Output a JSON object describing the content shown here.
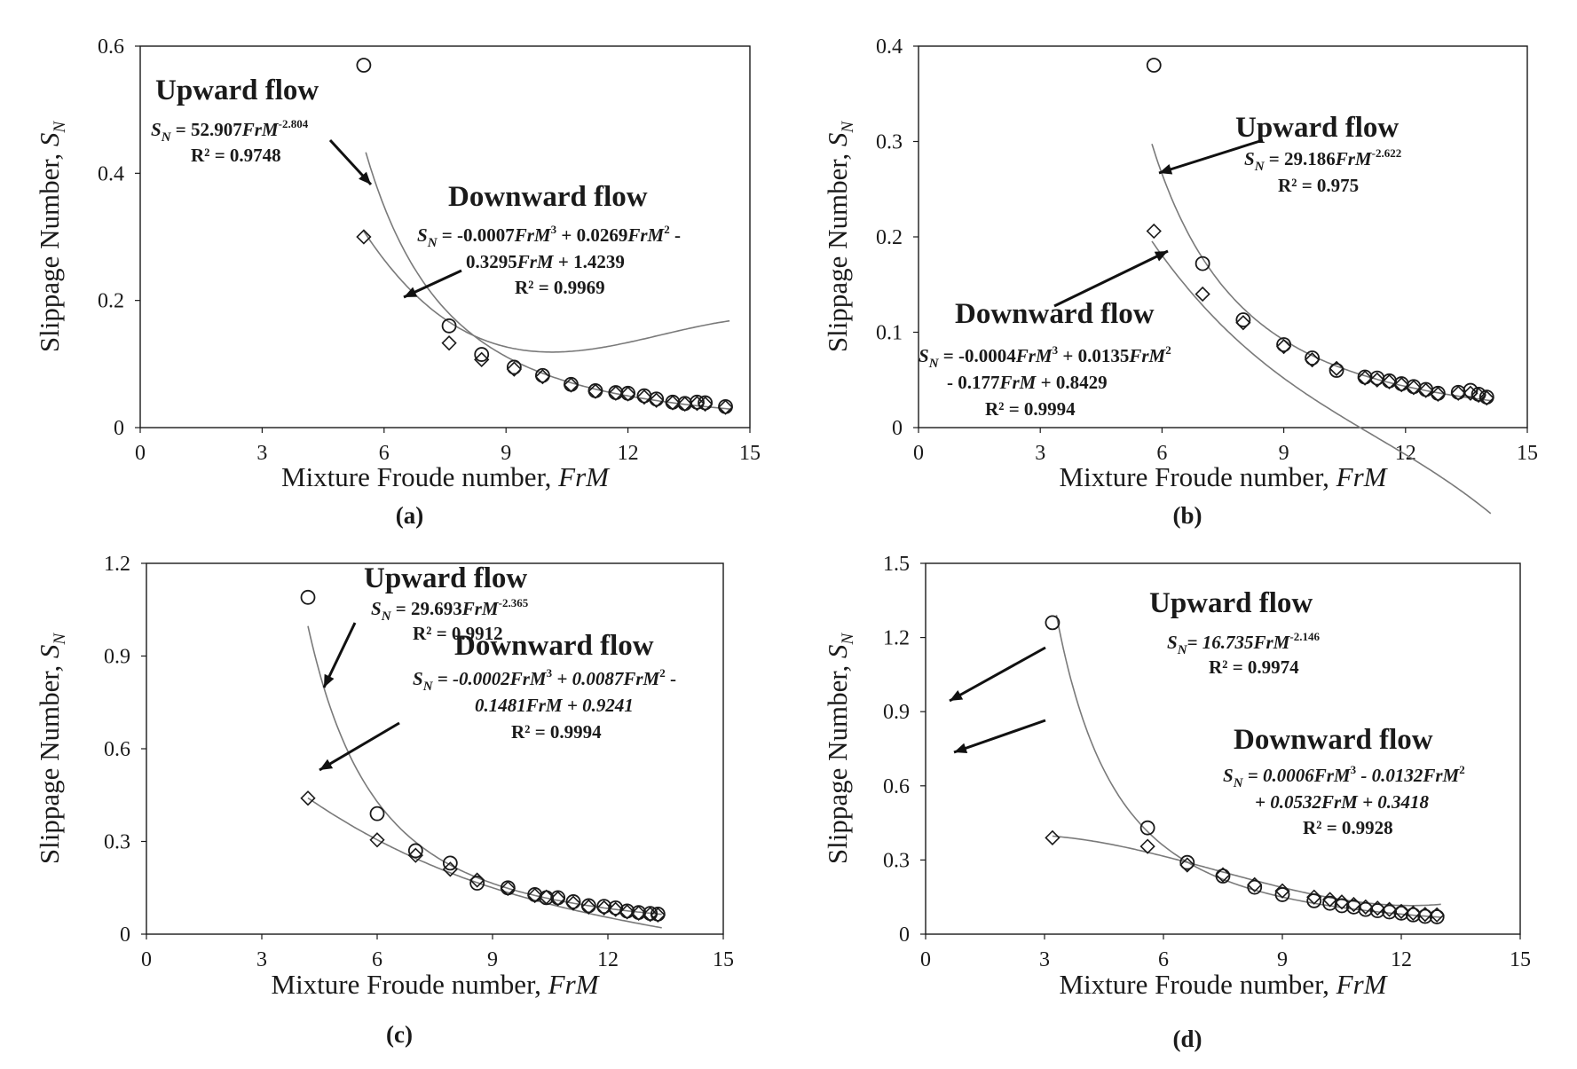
{
  "figure": {
    "colors": {
      "axis": "#1a1a1a",
      "curve": "#7a7a7a",
      "marker": "#1a1a1a",
      "background": "#ffffff"
    }
  },
  "chart_data": [
    {
      "id": "a",
      "type": "scatter",
      "panel_label": "(a)",
      "xlabel": "Mixture Froude number, ",
      "xlabel_italic": "FrM",
      "ylabel": "Slippage Number, ",
      "ylabel_italic": "S",
      "ylabel_sub": "N",
      "xlim": [
        0,
        15
      ],
      "ylim": [
        0,
        0.6
      ],
      "xticks": [
        0,
        3,
        6,
        9,
        12,
        15
      ],
      "yticks": [
        0,
        0.2,
        0.4,
        0.6
      ],
      "xtick_labels": [
        "0",
        "3",
        "6",
        "9",
        "12",
        "15"
      ],
      "ytick_labels": [
        "0",
        "0.2",
        "0.4",
        "0.6"
      ],
      "series": [
        {
          "name": "Upward flow",
          "marker": "circle",
          "x": [
            5.5,
            7.6,
            8.4,
            9.2,
            9.9,
            10.6,
            11.2,
            11.7,
            12.0,
            12.4,
            12.7,
            13.1,
            13.4,
            13.7,
            13.9,
            14.4
          ],
          "y": [
            0.57,
            0.16,
            0.115,
            0.095,
            0.082,
            0.068,
            0.058,
            0.055,
            0.054,
            0.05,
            0.045,
            0.04,
            0.038,
            0.04,
            0.039,
            0.033
          ],
          "fit": {
            "kind": "power",
            "a": 52.907,
            "b": -2.804,
            "range": [
              5.55,
              14.5
            ]
          }
        },
        {
          "name": "Downward flow",
          "marker": "diamond",
          "x": [
            5.5,
            7.6,
            8.4,
            9.2,
            9.9,
            10.6,
            11.2,
            11.7,
            12.0,
            12.4,
            12.7,
            13.1,
            13.4,
            13.7,
            13.9,
            14.4
          ],
          "y": [
            0.3,
            0.133,
            0.107,
            0.092,
            0.08,
            0.067,
            0.057,
            0.054,
            0.053,
            0.048,
            0.043,
            0.039,
            0.037,
            0.038,
            0.037,
            0.032
          ],
          "fit": {
            "kind": "poly3",
            "c3": -0.0007,
            "c2": 0.0269,
            "c1": -0.3295,
            "c0": 1.4239,
            "range": [
              5.5,
              14.5
            ]
          }
        }
      ],
      "annotations": {
        "up": {
          "title": "Upward flow",
          "eq": [
            [
              "S",
              "i"
            ],
            [
              "N",
              "sub"
            ],
            [
              " = 52.907",
              ""
            ],
            [
              "FrM",
              "i"
            ],
            [
              "-2.804",
              "sup"
            ]
          ],
          "r2": "R² = 0.9748"
        },
        "down": {
          "title": "Downward flow",
          "eq": [
            [
              "S",
              "i"
            ],
            [
              "N",
              "sub"
            ],
            [
              " = -0.0007",
              ""
            ],
            [
              "FrM",
              "i"
            ],
            [
              "3",
              "sup"
            ],
            [
              " + 0.0269",
              ""
            ],
            [
              "FrM",
              "i"
            ],
            [
              "2",
              "sup"
            ],
            [
              " -",
              ""
            ]
          ],
          "eq2": [
            [
              "0.3295",
              ""
            ],
            [
              "FrM",
              "i"
            ],
            [
              " + 1.4239",
              ""
            ]
          ],
          "r2": "R² = 0.9969"
        }
      }
    },
    {
      "id": "b",
      "type": "scatter",
      "panel_label": "(b)",
      "xlabel": "Mixture Froude number, ",
      "xlabel_italic": "FrM",
      "ylabel": "Slippage Number, ",
      "ylabel_italic": "S",
      "ylabel_sub": "N",
      "xlim": [
        0,
        15
      ],
      "ylim": [
        0,
        0.4
      ],
      "xticks": [
        0,
        3,
        6,
        9,
        12,
        15
      ],
      "yticks": [
        0,
        0.1,
        0.2,
        0.3,
        0.4
      ],
      "xtick_labels": [
        "0",
        "3",
        "6",
        "9",
        "12",
        "15"
      ],
      "ytick_labels": [
        "0",
        "0.1",
        "0.2",
        "0.3",
        "0.4"
      ],
      "series": [
        {
          "name": "Upward flow",
          "marker": "circle",
          "x": [
            5.8,
            7.0,
            8.0,
            9.0,
            9.7,
            10.3,
            11.0,
            11.3,
            11.6,
            11.9,
            12.2,
            12.5,
            12.8,
            13.3,
            13.6,
            13.8,
            14.0
          ],
          "y": [
            0.38,
            0.172,
            0.113,
            0.087,
            0.073,
            0.06,
            0.053,
            0.052,
            0.049,
            0.046,
            0.043,
            0.04,
            0.036,
            0.037,
            0.039,
            0.035,
            0.032
          ],
          "fit": {
            "kind": "power",
            "a": 29.186,
            "b": -2.622,
            "range": [
              5.75,
              14.1
            ]
          }
        },
        {
          "name": "Downward flow",
          "marker": "diamond",
          "x": [
            5.8,
            7.0,
            8.0,
            9.0,
            9.7,
            10.3,
            11.0,
            11.3,
            11.6,
            11.9,
            12.2,
            12.5,
            12.8,
            13.3,
            13.6,
            13.8,
            14.0
          ],
          "y": [
            0.206,
            0.14,
            0.11,
            0.085,
            0.071,
            0.062,
            0.052,
            0.05,
            0.048,
            0.045,
            0.042,
            0.039,
            0.035,
            0.036,
            0.036,
            0.034,
            0.031
          ],
          "fit": {
            "kind": "poly3",
            "c3": -0.0004,
            "c2": 0.0135,
            "c1": -0.177,
            "c0": 0.8429,
            "range": [
              5.75,
              14.1
            ]
          }
        }
      ],
      "annotations": {
        "up": {
          "title": "Upward flow",
          "eq": [
            [
              "S",
              "i"
            ],
            [
              "N",
              "sub"
            ],
            [
              " = 29.186",
              ""
            ],
            [
              "FrM",
              "i"
            ],
            [
              "-2.622",
              "sup"
            ]
          ],
          "r2": "R² = 0.975"
        },
        "down": {
          "title": "Downward flow",
          "eq": [
            [
              "S",
              "i"
            ],
            [
              "N",
              "sub"
            ],
            [
              " = -0.0004",
              ""
            ],
            [
              "FrM",
              "i"
            ],
            [
              "3",
              "sup"
            ],
            [
              " + 0.0135",
              ""
            ],
            [
              "FrM",
              "i"
            ],
            [
              "2",
              "sup"
            ]
          ],
          "eq2": [
            [
              "- 0.177",
              ""
            ],
            [
              "FrM",
              "i"
            ],
            [
              " + 0.8429",
              ""
            ]
          ],
          "r2": "R² = 0.9994"
        }
      }
    },
    {
      "id": "c",
      "type": "scatter",
      "panel_label": "(c)",
      "xlabel": "Mixture Froude number, ",
      "xlabel_italic": "FrM",
      "ylabel": "Slippage Number, ",
      "ylabel_italic": "S",
      "ylabel_sub": "N",
      "xlim": [
        0,
        15
      ],
      "ylim": [
        0,
        1.2
      ],
      "xticks": [
        0,
        3,
        6,
        9,
        12,
        15
      ],
      "yticks": [
        0,
        0.3,
        0.6,
        0.9,
        1.2
      ],
      "xtick_labels": [
        "0",
        "3",
        "6",
        "9",
        "12",
        "15"
      ],
      "ytick_labels": [
        "0",
        "0.3",
        "0.6",
        "0.9",
        "1.2"
      ],
      "series": [
        {
          "name": "Upward flow",
          "marker": "circle",
          "x": [
            4.2,
            6.0,
            7.0,
            7.9,
            8.6,
            9.4,
            10.1,
            10.4,
            10.7,
            11.1,
            11.5,
            11.9,
            12.2,
            12.5,
            12.8,
            13.1,
            13.3
          ],
          "y": [
            1.09,
            0.39,
            0.27,
            0.23,
            0.165,
            0.15,
            0.128,
            0.118,
            0.118,
            0.105,
            0.092,
            0.09,
            0.085,
            0.075,
            0.07,
            0.067,
            0.065
          ],
          "fit": {
            "kind": "power",
            "a": 29.693,
            "b": -2.365,
            "range": [
              4.2,
              13.4
            ]
          }
        },
        {
          "name": "Downward flow",
          "marker": "diamond",
          "x": [
            4.2,
            6.0,
            7.0,
            7.9,
            8.6,
            9.4,
            10.1,
            10.4,
            10.7,
            11.1,
            11.5,
            11.9,
            12.2,
            12.5,
            12.8,
            13.1,
            13.3
          ],
          "y": [
            0.44,
            0.305,
            0.255,
            0.21,
            0.175,
            0.148,
            0.125,
            0.12,
            0.115,
            0.1,
            0.088,
            0.085,
            0.08,
            0.072,
            0.068,
            0.064,
            0.062
          ],
          "fit": {
            "kind": "poly3",
            "c3": -0.0002,
            "c2": 0.0087,
            "c1": -0.1481,
            "c0": 0.9241,
            "range": [
              4.2,
              13.4
            ]
          }
        }
      ],
      "annotations": {
        "up": {
          "title": "Upward flow",
          "eq": [
            [
              "S",
              "i"
            ],
            [
              "N",
              "sub"
            ],
            [
              " = 29.693",
              ""
            ],
            [
              "FrM",
              "i"
            ],
            [
              "-2.365",
              "sup"
            ]
          ],
          "r2": "R² = 0.9912"
        },
        "down": {
          "title": "Downward flow",
          "eq": [
            [
              "S",
              "i"
            ],
            [
              "N",
              "sub"
            ],
            [
              " = -0.0002",
              "i"
            ],
            [
              "FrM",
              "i"
            ],
            [
              "3",
              "sup"
            ],
            [
              " + 0.0087",
              "i"
            ],
            [
              "FrM",
              "i"
            ],
            [
              "2",
              "sup"
            ],
            [
              " -",
              ""
            ]
          ],
          "eq2": [
            [
              "0.1481",
              "i"
            ],
            [
              "FrM",
              "i"
            ],
            [
              " + 0.9241",
              "i"
            ]
          ],
          "r2": "R² = 0.9994"
        }
      }
    },
    {
      "id": "d",
      "type": "scatter",
      "panel_label": "(d)",
      "xlabel": "Mixture Froude number, ",
      "xlabel_italic": "FrM",
      "ylabel": "Slippage Number, ",
      "ylabel_italic": "S",
      "ylabel_sub": "N",
      "xlim": [
        0,
        15
      ],
      "ylim": [
        0,
        1.5
      ],
      "xticks": [
        0,
        3,
        6,
        9,
        12,
        15
      ],
      "yticks": [
        0,
        0.3,
        0.6,
        0.9,
        1.2,
        1.5
      ],
      "xtick_labels": [
        "0",
        "3",
        "6",
        "9",
        "12",
        "15"
      ],
      "ytick_labels": [
        "0",
        "0.3",
        "0.6",
        "0.9",
        "1.2",
        "1.5"
      ],
      "series": [
        {
          "name": "Upward flow",
          "marker": "circle",
          "x": [
            3.2,
            5.6,
            6.6,
            7.5,
            8.3,
            9.0,
            9.8,
            10.2,
            10.5,
            10.8,
            11.1,
            11.4,
            11.7,
            12.0,
            12.3,
            12.6,
            12.9
          ],
          "y": [
            1.26,
            0.43,
            0.29,
            0.235,
            0.19,
            0.16,
            0.135,
            0.125,
            0.115,
            0.11,
            0.1,
            0.095,
            0.09,
            0.085,
            0.078,
            0.072,
            0.07
          ],
          "fit": {
            "kind": "power",
            "a": 16.735,
            "b": -2.146,
            "range": [
              3.3,
              13.0
            ]
          }
        },
        {
          "name": "Downward flow",
          "marker": "diamond",
          "x": [
            3.2,
            5.6,
            6.6,
            7.5,
            8.3,
            9.0,
            9.8,
            10.2,
            10.5,
            10.8,
            11.1,
            11.4,
            11.7,
            12.0,
            12.3,
            12.6,
            12.9
          ],
          "y": [
            0.39,
            0.355,
            0.28,
            0.24,
            0.2,
            0.175,
            0.15,
            0.14,
            0.13,
            0.12,
            0.11,
            0.105,
            0.1,
            0.092,
            0.085,
            0.08,
            0.078
          ],
          "fit": {
            "kind": "poly3",
            "c3": 0.0006,
            "c2": -0.0132,
            "c1": 0.0532,
            "c0": 0.3418,
            "range": [
              3.2,
              13.0
            ]
          }
        }
      ],
      "annotations": {
        "up": {
          "title": "Upward flow",
          "eq": [
            [
              "S",
              "i"
            ],
            [
              "N",
              "sub"
            ],
            [
              "= 16.735",
              "i"
            ],
            [
              "FrM",
              "i"
            ],
            [
              "-2.146",
              "sup"
            ]
          ],
          "r2": "R² = 0.9974"
        },
        "down": {
          "title": "Downward flow",
          "eq": [
            [
              "S",
              "i"
            ],
            [
              "N",
              "sub"
            ],
            [
              " = 0.0006",
              "i"
            ],
            [
              "FrM",
              "i"
            ],
            [
              "3",
              "sup"
            ],
            [
              " - 0.0132",
              "i"
            ],
            [
              "FrM",
              "i"
            ],
            [
              "2",
              "sup"
            ]
          ],
          "eq2": [
            [
              "+ 0.0532",
              "i"
            ],
            [
              "FrM",
              "i"
            ],
            [
              " + 0.3418",
              "i"
            ]
          ],
          "r2": "R² = 0.9928"
        }
      }
    }
  ]
}
